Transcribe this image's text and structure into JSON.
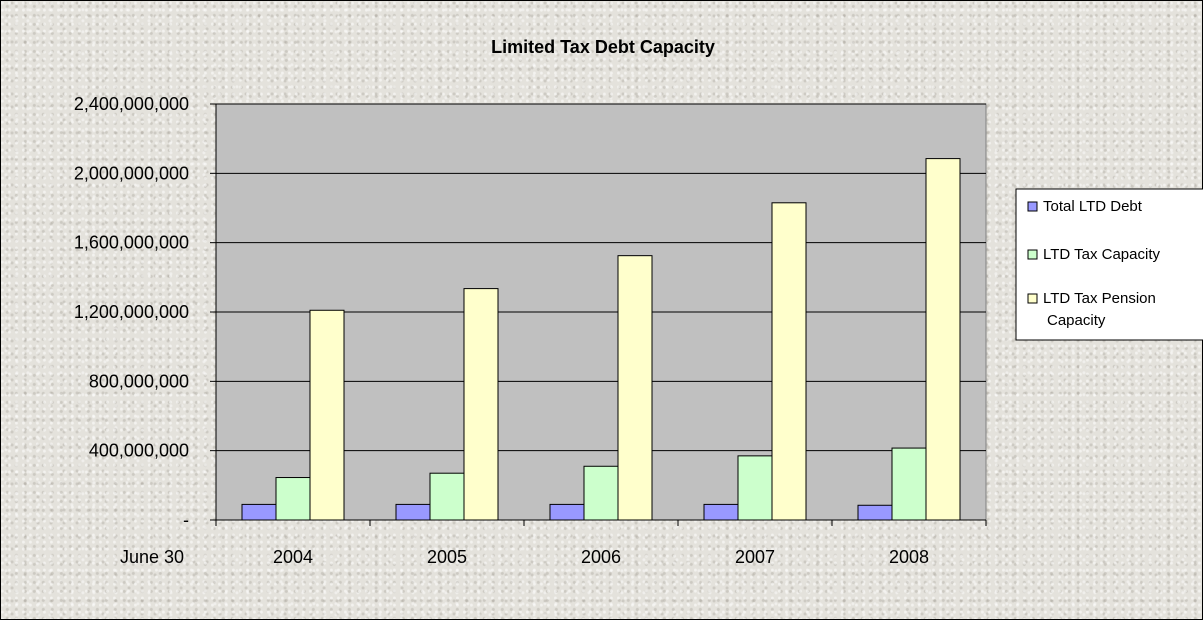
{
  "chart_data": {
    "type": "bar",
    "title": "Limited Tax Debt Capacity",
    "xlabel": "June 30",
    "ylabel": "",
    "categories": [
      "2004",
      "2005",
      "2006",
      "2007",
      "2008"
    ],
    "ylim": [
      0,
      2400000000
    ],
    "y_ticks": [
      "-",
      "400,000,000",
      "800,000,000",
      "1,200,000,000",
      "1,600,000,000",
      "2,000,000,000",
      "2,400,000,000"
    ],
    "grid": true,
    "legend_position": "right",
    "series": [
      {
        "name": "Total LTD Debt",
        "color": "#9999ff",
        "values": [
          90000000,
          90000000,
          90000000,
          90000000,
          85000000
        ]
      },
      {
        "name": "LTD Tax Capacity",
        "color": "#ccffcc",
        "values": [
          245000000,
          270000000,
          310000000,
          370000000,
          415000000
        ]
      },
      {
        "name": "LTD Tax Pension Capacity",
        "color": "#ffffcc",
        "values": [
          1210000000,
          1335000000,
          1525000000,
          1830000000,
          2085000000
        ]
      }
    ]
  }
}
